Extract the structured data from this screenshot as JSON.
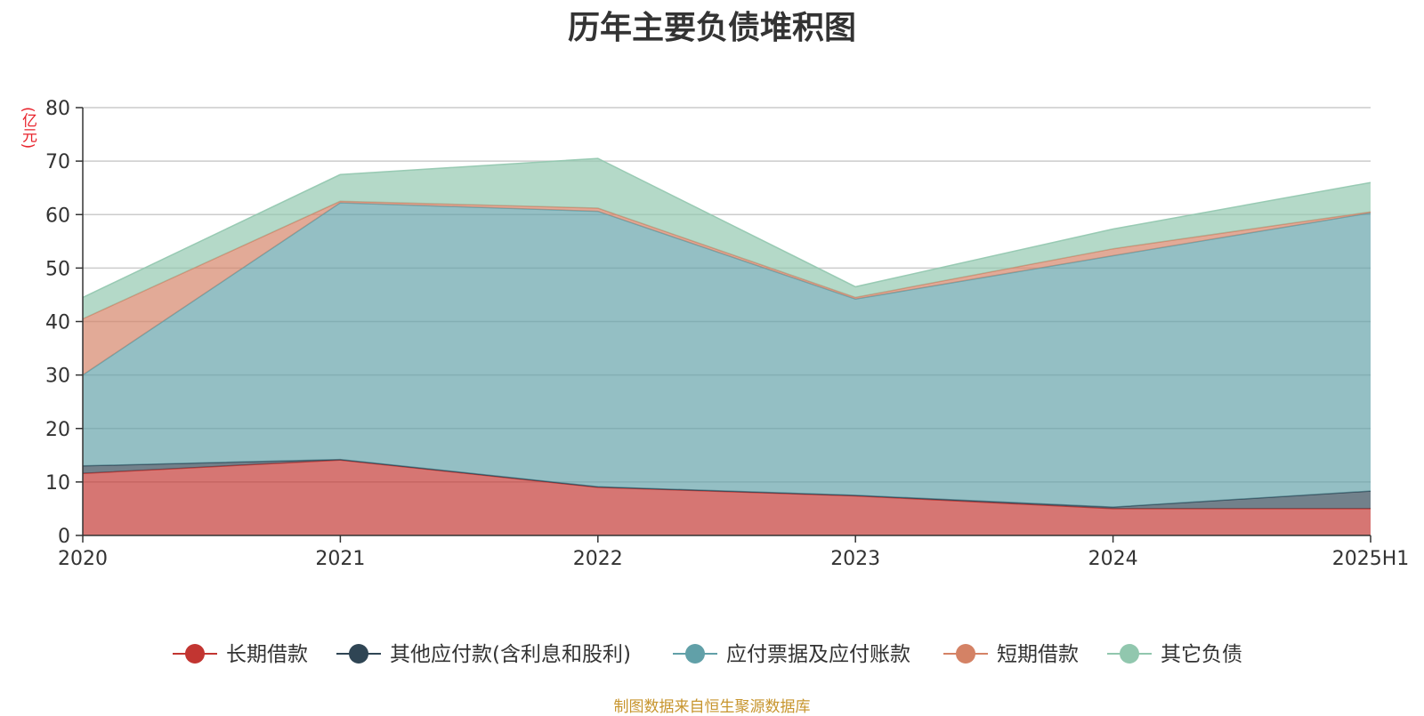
{
  "chart_data": {
    "type": "area",
    "title": "历年主要负债堆积图",
    "ylabel": "(亿元)",
    "xlabel": "",
    "categories": [
      "2020",
      "2021",
      "2022",
      "2023",
      "2024",
      "2025H1"
    ],
    "ylim": [
      0,
      80
    ],
    "yticks": [
      0,
      10,
      20,
      30,
      40,
      50,
      60,
      70,
      80
    ],
    "stacked": true,
    "grid": true,
    "legend_position": "bottom",
    "series": [
      {
        "name": "长期借款",
        "color": "#c23531",
        "values": [
          11.6,
          14.1,
          9.0,
          7.4,
          5.0,
          5.0
        ]
      },
      {
        "name": "其他应付款(含利息和股利)",
        "color": "#2f4554",
        "values": [
          1.4,
          0.1,
          0.1,
          0.1,
          0.3,
          3.3
        ]
      },
      {
        "name": "应付票据及应付账款",
        "color": "#61a0a8",
        "values": [
          17.0,
          48.0,
          51.5,
          36.7,
          47.0,
          52.0
        ]
      },
      {
        "name": "短期借款",
        "color": "#d48265",
        "values": [
          10.5,
          0.3,
          0.6,
          0.3,
          1.3,
          0.2
        ]
      },
      {
        "name": "其它负债",
        "color": "#91c7ae",
        "values": [
          4.0,
          5.0,
          9.3,
          2.0,
          3.7,
          5.5
        ]
      }
    ]
  },
  "footer": {
    "source": "制图数据来自恒生聚源数据库"
  }
}
